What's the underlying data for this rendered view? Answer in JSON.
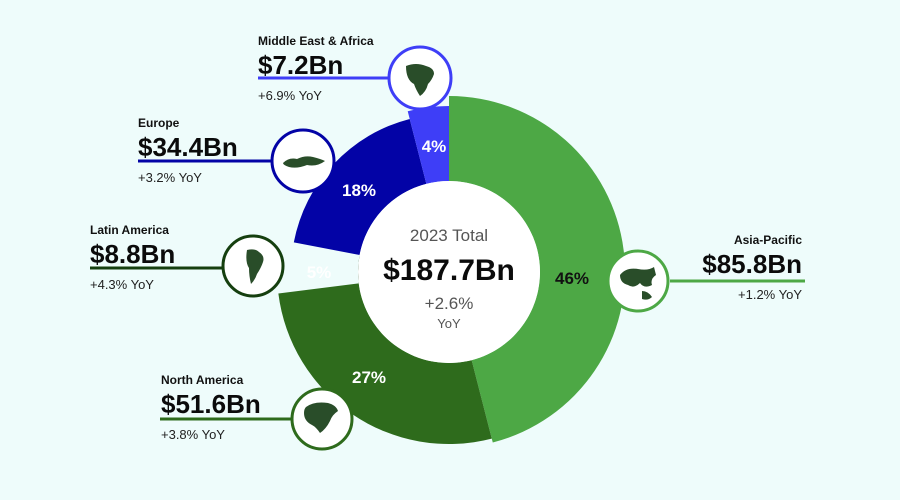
{
  "chart_data": {
    "type": "pie",
    "variant": "donut",
    "center": {
      "label": "2023 Total",
      "value": "$187.7Bn",
      "change": "+2.6%",
      "change_unit": "YoY"
    },
    "slices": [
      {
        "key": "asia",
        "region": "Asia-Pacific",
        "share": 46,
        "share_label": "46%",
        "value_label": "$85.8Bn",
        "value_bn": 85.8,
        "yoy": "+1.2% YoY",
        "color": "#4da845",
        "label_color": "#111111",
        "icon": "asia-map-icon"
      },
      {
        "key": "na",
        "region": "North America",
        "share": 27,
        "share_label": "27%",
        "value_label": "$51.6Bn",
        "value_bn": 51.6,
        "yoy": "+3.8% YoY",
        "color": "#2e6b1c",
        "label_color": "#ffffff",
        "icon": "north-america-map-icon"
      },
      {
        "key": "la",
        "region": "Latin America",
        "share": 5,
        "share_label": "5%",
        "value_label": "$8.8Bn",
        "value_bn": 8.8,
        "yoy": "+4.3% YoY",
        "color": "#153f0f",
        "label_color": "#ffffff",
        "icon": "south-america-map-icon"
      },
      {
        "key": "eu",
        "region": "Europe",
        "share": 18,
        "share_label": "18%",
        "value_label": "$34.4Bn",
        "value_bn": 34.4,
        "yoy": "+3.2% YoY",
        "color": "#0303a6",
        "label_color": "#ffffff",
        "icon": "europe-map-icon"
      },
      {
        "key": "mea",
        "region": "Middle East & Africa",
        "share": 4,
        "share_label": "4%",
        "value_label": "$7.2Bn",
        "value_bn": 7.2,
        "yoy": "+6.9% YoY",
        "color": "#3e3ef7",
        "label_color": "#ffffff",
        "icon": "africa-map-icon"
      }
    ]
  }
}
